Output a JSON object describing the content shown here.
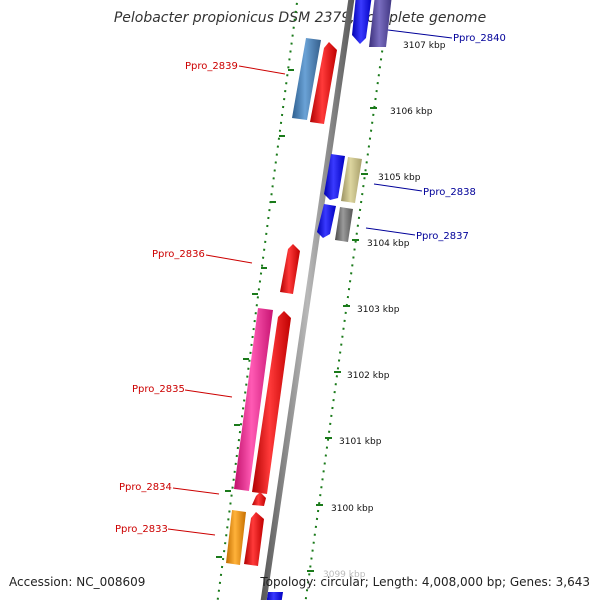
{
  "title": "Pelobacter propionicus DSM 2379, complete genome",
  "footer": {
    "accession": "Accession: NC_008609",
    "topology": "Topology: circular; Length: 4,008,000 bp; Genes: 3,643"
  },
  "scale_labels": [
    "3107 kbp",
    "3106 kbp",
    "3105 kbp",
    "3104 kbp",
    "3103 kbp",
    "3102 kbp",
    "3101 kbp",
    "3100 kbp",
    "3099 kbp"
  ],
  "genes": [
    {
      "name": "Ppro_2840",
      "strand": "reverse",
      "color": "#1a1aff"
    },
    {
      "name": "Ppro_2839",
      "strand": "forward",
      "color": "#ff0000"
    },
    {
      "name": "Ppro_2838",
      "strand": "reverse",
      "color": "#1a1aff"
    },
    {
      "name": "Ppro_2837",
      "strand": "reverse",
      "color": "#1a1aff"
    },
    {
      "name": "Ppro_2836",
      "strand": "forward",
      "color": "#ff0000"
    },
    {
      "name": "Ppro_2835",
      "strand": "forward",
      "color": "#ff0000"
    },
    {
      "name": "Ppro_2834",
      "strand": "forward",
      "color": "#ff0000"
    },
    {
      "name": "Ppro_2833",
      "strand": "forward",
      "color": "#ff0000"
    }
  ],
  "colors": {
    "forward_label": "#cc0000",
    "reverse_label": "#000099",
    "backbone": "#888888",
    "ticks": "#1a7a1a",
    "cog_steelblue": "#4a86c0",
    "cog_khaki": "#c8bf80",
    "cog_gray": "#707070",
    "cog_slate": "#5a4e9a",
    "cog_pink": "#ff2a9a",
    "cog_orange": "#ff9900"
  }
}
